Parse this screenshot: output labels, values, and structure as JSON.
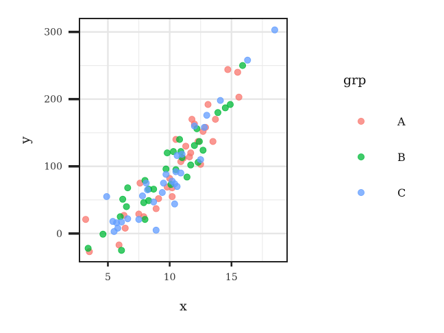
{
  "chart_data": {
    "type": "scatter",
    "xlabel": "x",
    "ylabel": "y",
    "xlim": [
      2.7,
      19.5
    ],
    "ylim": [
      -42,
      320
    ],
    "x_ticks": [
      5,
      10,
      15
    ],
    "y_ticks": [
      0,
      100,
      200,
      300
    ],
    "grid": true,
    "legend": {
      "title": "grp",
      "placement": "right"
    },
    "series": [
      {
        "name": "A",
        "color": "#F8766D",
        "points": [
          [
            3.2,
            21
          ],
          [
            3.5,
            -27
          ],
          [
            5.9,
            -17
          ],
          [
            6.4,
            8
          ],
          [
            6.3,
            27
          ],
          [
            7.5,
            29
          ],
          [
            7.6,
            75
          ],
          [
            7.9,
            25
          ],
          [
            8.9,
            37
          ],
          [
            9.1,
            52
          ],
          [
            9.8,
            69
          ],
          [
            10.0,
            82
          ],
          [
            10.2,
            55
          ],
          [
            10.2,
            68
          ],
          [
            10.5,
            140
          ],
          [
            10.9,
            107
          ],
          [
            11.1,
            112
          ],
          [
            11.3,
            130
          ],
          [
            11.6,
            114
          ],
          [
            11.7,
            120
          ],
          [
            11.8,
            170
          ],
          [
            12.0,
            163
          ],
          [
            12.3,
            137
          ],
          [
            12.5,
            103
          ],
          [
            12.7,
            152
          ],
          [
            12.9,
            158
          ],
          [
            13.1,
            192
          ],
          [
            13.5,
            137
          ],
          [
            13.7,
            170
          ],
          [
            14.7,
            244
          ],
          [
            15.5,
            240
          ],
          [
            15.6,
            203
          ]
        ]
      },
      {
        "name": "B",
        "color": "#00BA38",
        "points": [
          [
            3.4,
            -22
          ],
          [
            4.6,
            -1
          ],
          [
            6.0,
            25
          ],
          [
            6.1,
            -25
          ],
          [
            6.2,
            51
          ],
          [
            6.5,
            40
          ],
          [
            6.6,
            68
          ],
          [
            7.9,
            46
          ],
          [
            8.0,
            79
          ],
          [
            8.0,
            21
          ],
          [
            8.3,
            49
          ],
          [
            8.3,
            66
          ],
          [
            8.7,
            66
          ],
          [
            9.7,
            96
          ],
          [
            9.8,
            120
          ],
          [
            10.1,
            73
          ],
          [
            10.3,
            122
          ],
          [
            10.5,
            95
          ],
          [
            10.8,
            140
          ],
          [
            10.9,
            122
          ],
          [
            11.0,
            113
          ],
          [
            11.4,
            84
          ],
          [
            11.7,
            102
          ],
          [
            12.0,
            131
          ],
          [
            12.2,
            156
          ],
          [
            12.3,
            106
          ],
          [
            12.4,
            137
          ],
          [
            12.7,
            124
          ],
          [
            13.9,
            180
          ],
          [
            14.5,
            187
          ],
          [
            14.9,
            192
          ],
          [
            15.9,
            250
          ]
        ]
      },
      {
        "name": "C",
        "color": "#619CFF",
        "points": [
          [
            4.9,
            55
          ],
          [
            5.4,
            18
          ],
          [
            5.5,
            3
          ],
          [
            5.7,
            16
          ],
          [
            5.8,
            8
          ],
          [
            6.1,
            17
          ],
          [
            6.6,
            22
          ],
          [
            7.5,
            21
          ],
          [
            7.8,
            56
          ],
          [
            8.1,
            75
          ],
          [
            8.2,
            65
          ],
          [
            8.7,
            47
          ],
          [
            8.9,
            5
          ],
          [
            9.4,
            61
          ],
          [
            9.5,
            75
          ],
          [
            9.7,
            88
          ],
          [
            10.2,
            78
          ],
          [
            10.4,
            44
          ],
          [
            10.4,
            74
          ],
          [
            10.5,
            92
          ],
          [
            10.6,
            116
          ],
          [
            10.6,
            70
          ],
          [
            10.9,
            90
          ],
          [
            11.0,
            118
          ],
          [
            12.0,
            160
          ],
          [
            12.5,
            110
          ],
          [
            12.8,
            158
          ],
          [
            13.0,
            176
          ],
          [
            14.1,
            198
          ],
          [
            16.3,
            258
          ],
          [
            18.5,
            303
          ]
        ]
      }
    ]
  }
}
